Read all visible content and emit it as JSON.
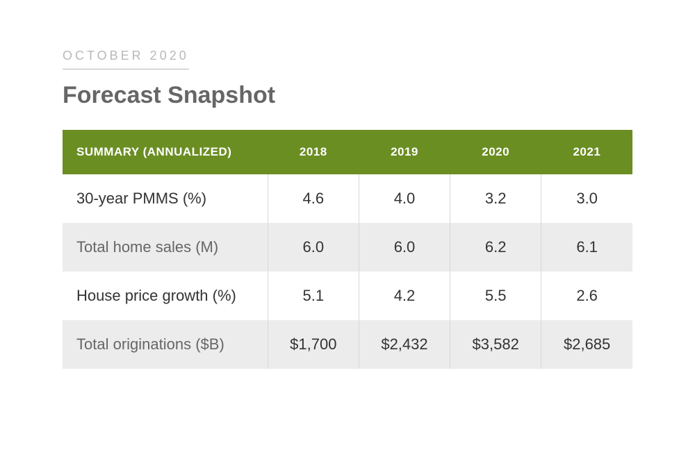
{
  "header": {
    "date_label": "OCTOBER 2020",
    "title": "Forecast Snapshot"
  },
  "table": {
    "type": "table",
    "header_bg_color": "#6b8e23",
    "header_text_color": "#ffffff",
    "alt_row_bg_color": "#ececec",
    "plain_row_bg_color": "#ffffff",
    "border_color": "#d8d8d8",
    "summary_label": "SUMMARY (ANNUALIZED)",
    "columns": [
      "2018",
      "2019",
      "2020",
      "2021"
    ],
    "rows": [
      {
        "label": "30-year PMMS (%)",
        "values": [
          "4.6",
          "4.0",
          "3.2",
          "3.0"
        ]
      },
      {
        "label": "Total home sales (M)",
        "values": [
          "6.0",
          "6.0",
          "6.2",
          "6.1"
        ]
      },
      {
        "label": "House price growth (%)",
        "values": [
          "5.1",
          "4.2",
          "5.5",
          "2.6"
        ]
      },
      {
        "label": "Total originations ($B)",
        "values": [
          "$1,700",
          "$2,432",
          "$3,582",
          "$2,685"
        ]
      }
    ]
  }
}
